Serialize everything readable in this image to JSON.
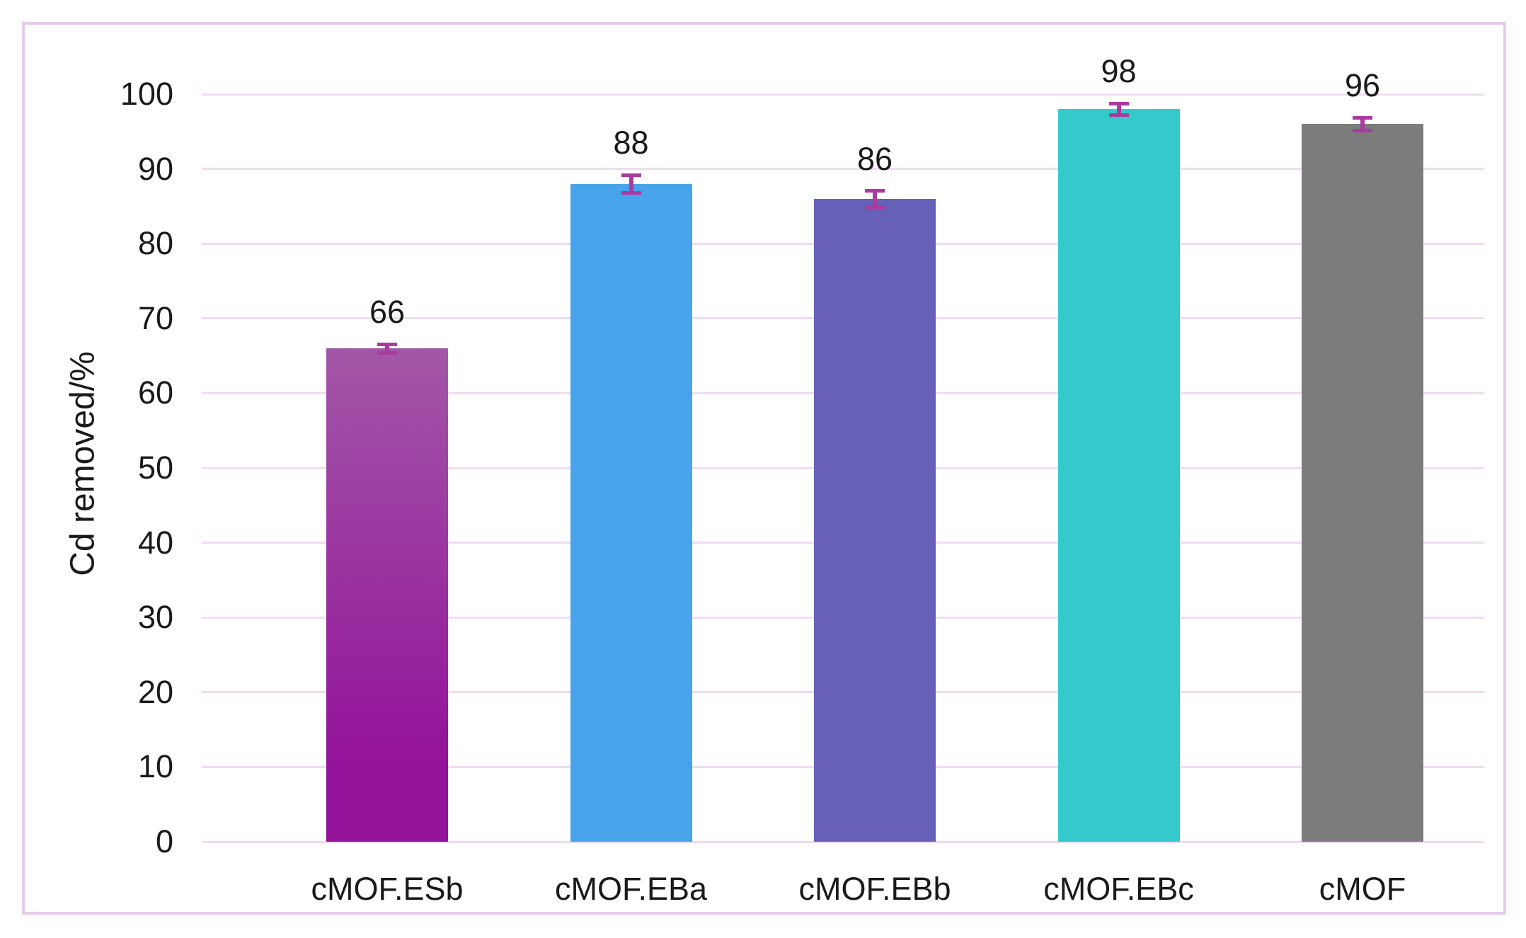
{
  "chart_data": {
    "type": "bar",
    "title": "",
    "xlabel": "",
    "ylabel": "Cd removed/%",
    "categories": [
      "cMOF.ESb",
      "cMOF.EBa",
      "cMOF.EBb",
      "cMOF.EBc",
      "cMOF"
    ],
    "values": [
      66,
      88,
      86,
      98,
      96
    ],
    "data_labels": [
      "66",
      "88",
      "86",
      "98",
      "96"
    ],
    "errors": [
      0.8,
      1.4,
      1.3,
      1.0,
      1.1
    ],
    "ylim": [
      0,
      100
    ],
    "ytick_step": 10,
    "yticks": [
      "0",
      "10",
      "20",
      "30",
      "40",
      "50",
      "60",
      "70",
      "80",
      "90",
      "100"
    ],
    "grid": "horizontal",
    "legend_position": "none",
    "bar_colors": [
      [
        "#a357a7",
        "#93129a"
      ],
      [
        "#47a4ea"
      ],
      [
        "#6660b9"
      ],
      [
        "#34c9cb"
      ],
      [
        "#7c7c7c"
      ]
    ],
    "error_bar_color": "#ab3aa0",
    "gridline_color": "#efdcf2",
    "frame_border_color": "#e6cde9",
    "text_color": "#1a1a1a"
  }
}
